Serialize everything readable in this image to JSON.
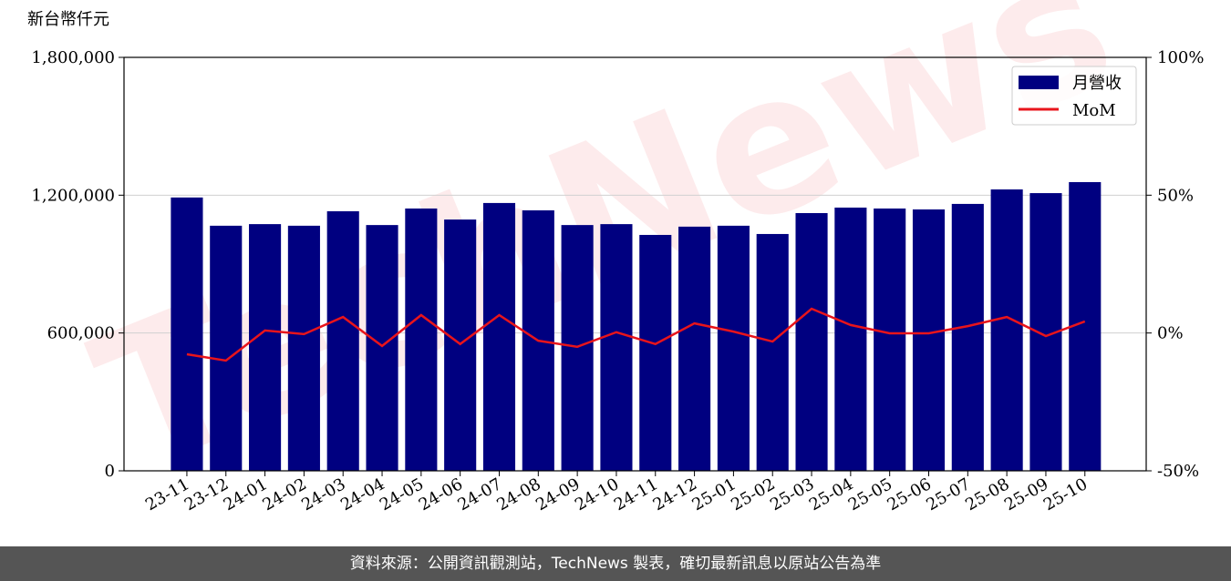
{
  "chart_data": {
    "type": "bar-line",
    "y_label": "新台幣仟元",
    "watermark": "TechNews",
    "categories": [
      "23-11",
      "23-12",
      "24-01",
      "24-02",
      "24-03",
      "24-04",
      "24-05",
      "24-06",
      "24-07",
      "24-08",
      "24-09",
      "24-10",
      "24-11",
      "24-12",
      "25-01",
      "25-02",
      "25-03",
      "25-04",
      "25-05",
      "25-06",
      "25-07",
      "25-08",
      "25-09",
      "25-10"
    ],
    "series": [
      {
        "name": "月營收",
        "type": "bar",
        "color": "#000080",
        "values": [
          1190000,
          1067000,
          1074000,
          1067000,
          1130000,
          1070000,
          1142000,
          1094000,
          1166000,
          1134000,
          1070000,
          1074000,
          1027000,
          1063000,
          1067000,
          1031000,
          1122000,
          1146000,
          1142000,
          1138000,
          1162000,
          1225000,
          1209000,
          1257000
        ]
      },
      {
        "name": "MoM",
        "type": "line",
        "axis": "y2",
        "color": "#e8141b",
        "values": [
          -7.7,
          -10.0,
          0.9,
          -0.4,
          5.8,
          -4.7,
          6.5,
          -4.0,
          6.5,
          -2.8,
          -5.0,
          0.3,
          -4.0,
          3.5,
          0.5,
          -3.1,
          8.8,
          2.9,
          -0.1,
          -0.1,
          2.5,
          5.8,
          -1.1,
          4.2
        ]
      }
    ],
    "ylim": [
      0,
      1800000
    ],
    "yticks": [
      0,
      {
        "value": 600000,
        "label": "600,000"
      },
      {
        "value": 1200000,
        "label": "1,200,000"
      },
      {
        "value": 1800000,
        "label": "1,800,000"
      }
    ],
    "y2lim": [
      -50,
      100
    ],
    "y2ticks": [
      {
        "value": -50,
        "label": "-50%"
      },
      {
        "value": 0,
        "label": "0%"
      },
      {
        "value": 50,
        "label": "50%"
      },
      {
        "value": 100,
        "label": "100%"
      }
    ],
    "grid": true,
    "legend": "upper right"
  },
  "footer": "資料來源：公開資訊觀測站，TechNews 製表，確切最新訊息以原站公告為準"
}
